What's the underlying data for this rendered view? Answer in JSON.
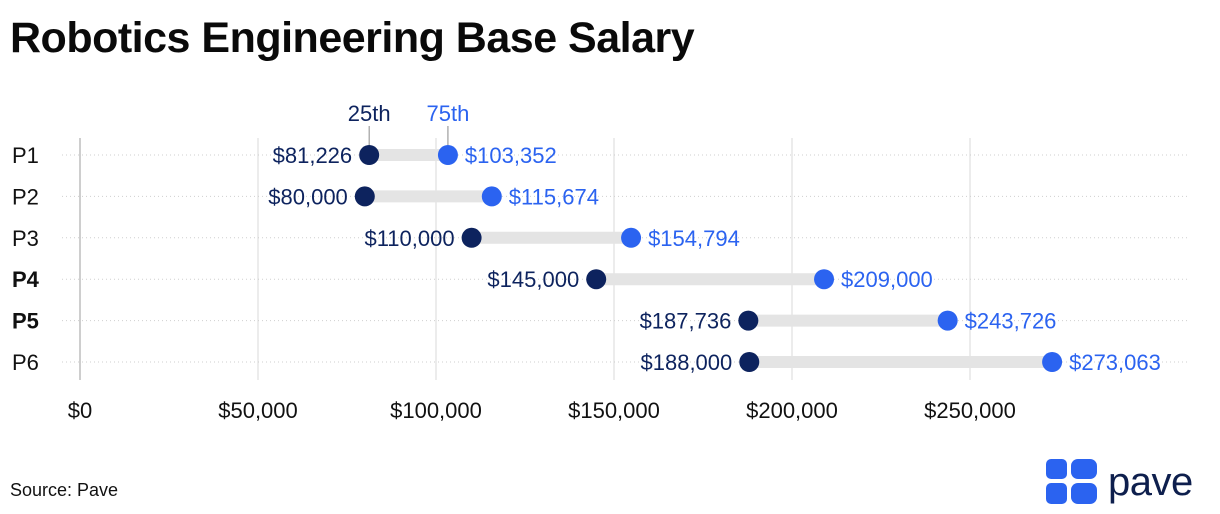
{
  "title": "Robotics Engineering Base Salary",
  "source": "Source: Pave",
  "brand": {
    "name": "pave",
    "color": "#0e1f4d",
    "tile_color": "#2b63f0"
  },
  "colors": {
    "p25": "#0d235e",
    "p75": "#2b63f0",
    "bar": "#e4e4e4",
    "grid": "#d8d8d8"
  },
  "chart_data": {
    "type": "dumbbell",
    "title": "Robotics Engineering Base Salary",
    "series_labels": {
      "p25": "25th",
      "p75": "75th"
    },
    "categories": [
      {
        "label": "P1",
        "bold": false,
        "p25": 81226,
        "p75": 103352,
        "p25_label": "$81,226",
        "p75_label": "$103,352"
      },
      {
        "label": "P2",
        "bold": false,
        "p25": 80000,
        "p75": 115674,
        "p25_label": "$80,000",
        "p75_label": "$115,674"
      },
      {
        "label": "P3",
        "bold": false,
        "p25": 110000,
        "p75": 154794,
        "p25_label": "$110,000",
        "p75_label": "$154,794"
      },
      {
        "label": "P4",
        "bold": true,
        "p25": 145000,
        "p75": 209000,
        "p25_label": "$145,000",
        "p75_label": "$209,000"
      },
      {
        "label": "P5",
        "bold": true,
        "p25": 187736,
        "p75": 243726,
        "p25_label": "$187,736",
        "p75_label": "$243,726"
      },
      {
        "label": "P6",
        "bold": false,
        "p25": 188000,
        "p75": 273063,
        "p25_label": "$188,000",
        "p75_label": "$273,063"
      }
    ],
    "x_ticks": [
      {
        "value": 0,
        "label": "$0"
      },
      {
        "value": 50000,
        "label": "$50,000"
      },
      {
        "value": 100000,
        "label": "$100,000"
      },
      {
        "value": 150000,
        "label": "$150,000"
      },
      {
        "value": 200000,
        "label": "$200,000"
      },
      {
        "value": 250000,
        "label": "$250,000"
      }
    ],
    "xlim": [
      0,
      300000
    ]
  }
}
